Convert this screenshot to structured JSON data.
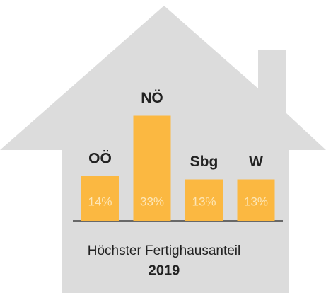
{
  "chart_data": {
    "type": "bar",
    "title": "Höchster Fertighausanteil",
    "subtitle": "2019",
    "categories": [
      "OÖ",
      "NÖ",
      "Sbg",
      "W"
    ],
    "values": [
      14,
      33,
      13,
      13
    ],
    "value_labels": [
      "14%",
      "33%",
      "13%",
      "13%"
    ],
    "color": "#fbb841"
  }
}
